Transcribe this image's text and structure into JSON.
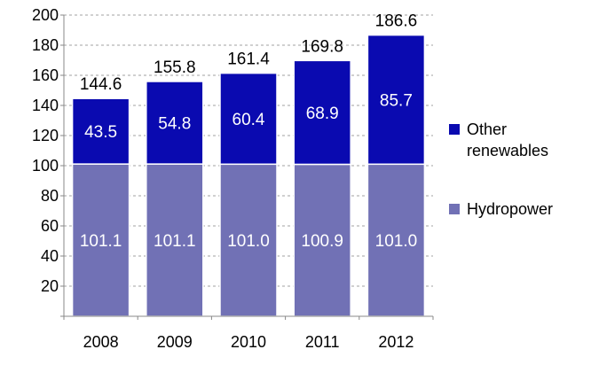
{
  "chart_data": {
    "type": "bar",
    "stacked": true,
    "categories": [
      "2008",
      "2009",
      "2010",
      "2011",
      "2012"
    ],
    "series": [
      {
        "name": "Hydropower",
        "values": [
          101.1,
          101.1,
          101.0,
          100.9,
          101.0
        ],
        "color": "#7171b5"
      },
      {
        "name": "Other renewables",
        "values": [
          43.5,
          54.8,
          60.4,
          68.9,
          85.7
        ],
        "color": "#0a0ab0"
      }
    ],
    "totals": [
      144.6,
      155.8,
      161.4,
      169.8,
      186.6
    ],
    "ylim": [
      0,
      200
    ],
    "yticks": [
      20,
      40,
      60,
      80,
      100,
      120,
      140,
      160,
      180,
      200
    ],
    "grid": true,
    "legend_position": "right",
    "title": "",
    "xlabel": "",
    "ylabel": ""
  },
  "legend": {
    "items": [
      {
        "label_line1": "Other",
        "label_line2": "renewables",
        "color": "#0a0ab0"
      },
      {
        "label_line1": "Hydropower",
        "label_line2": "",
        "color": "#7171b5"
      }
    ]
  }
}
